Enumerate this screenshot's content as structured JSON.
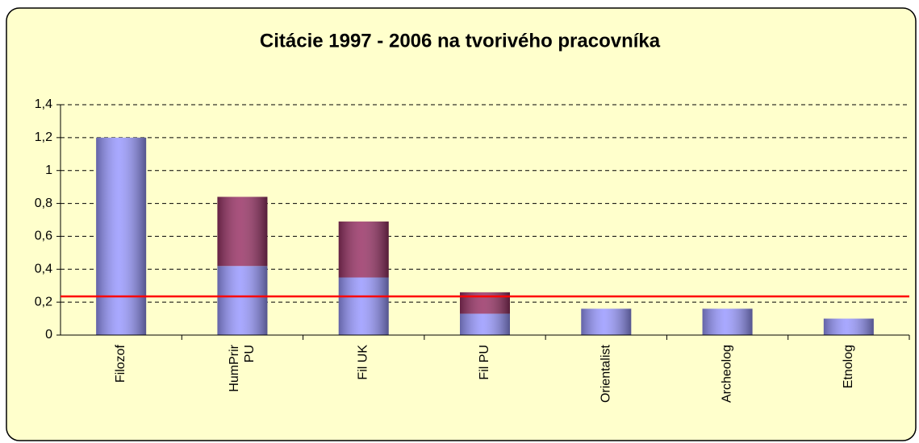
{
  "chart_data": {
    "type": "bar",
    "stacked": true,
    "title": "Citácie 1997 - 2006 na tvorivého pracovníka",
    "categories": [
      "Filozof",
      "HumPrir\nPU",
      "Fil UK",
      "Fil PU",
      "Orientalist",
      "Archeolog",
      "Etnolog"
    ],
    "series": [
      {
        "color": "#9999ff",
        "values": [
          1.2,
          0.42,
          0.35,
          0.13,
          0.16,
          0.16,
          0.1
        ]
      },
      {
        "color": "#993366",
        "values": [
          0,
          0.42,
          0.34,
          0.13,
          0,
          0,
          0
        ]
      }
    ],
    "ylim": [
      0,
      1.4
    ],
    "yticks": [
      0,
      {
        "value": 0.2,
        "label": "0,2"
      },
      {
        "value": 0.4,
        "label": "0,4"
      },
      {
        "value": 0.6,
        "label": "0,6"
      },
      {
        "value": 0.8,
        "label": "0,8"
      },
      1,
      {
        "value": 1.2,
        "label": "1,2"
      },
      {
        "value": 1.4,
        "label": "1,4"
      }
    ],
    "grid": true,
    "grid_style": "dashed",
    "reference_line": {
      "value": 0.235,
      "color": "#ff0000"
    },
    "background": "#ffffcc"
  }
}
